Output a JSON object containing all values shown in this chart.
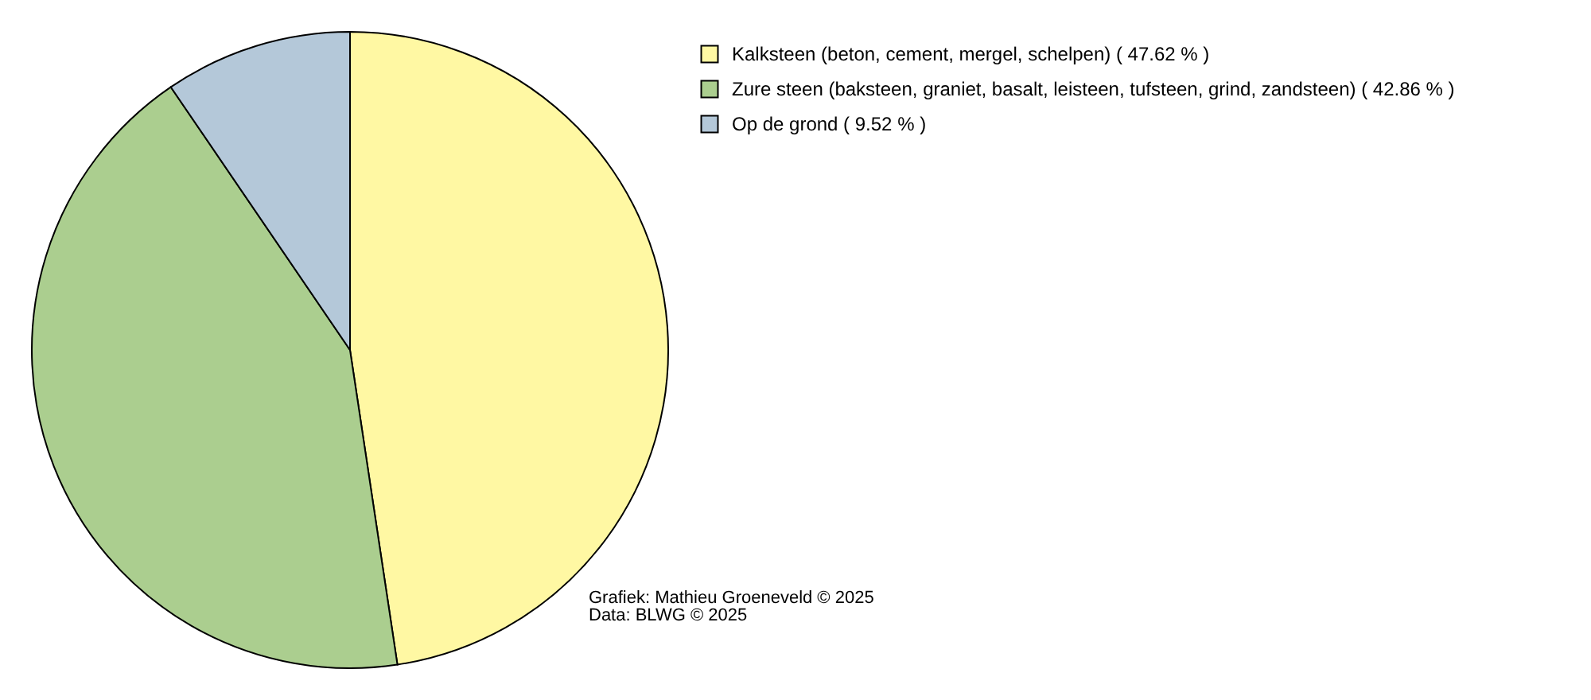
{
  "chart_data": {
    "type": "pie",
    "categories": [
      "Kalksteen (beton, cement, mergel, schelpen) ( 47.62 % )",
      "Zure steen (baksteen, graniet, basalt, leisteen, tufsteen, grind, zandsteen) ( 42.86 % )",
      "Op de grond ( 9.52 % )"
    ],
    "values": [
      47.62,
      42.86,
      9.52
    ],
    "colors": [
      "#fff8a3",
      "#abce8f",
      "#b4c8d9"
    ],
    "legend": "top right",
    "annotations": [
      "Grafiek: Mathieu Groeneveld © 2025",
      "Data: BLWG © 2025"
    ]
  }
}
